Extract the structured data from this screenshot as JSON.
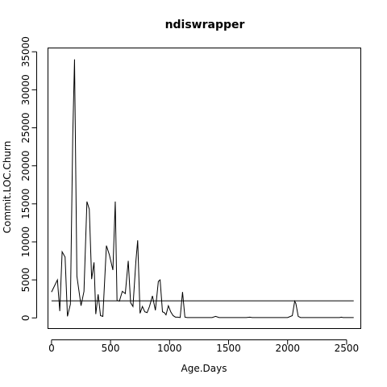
{
  "chart_data": {
    "type": "line",
    "title": "ndiswrapper",
    "xlabel": "Age.Days",
    "ylabel": "Commit.LOC.Churn",
    "xlim": [
      -30,
      2620
    ],
    "ylim": [
      -1400,
      35500
    ],
    "x_ticks": [
      0,
      500,
      1000,
      1500,
      2000,
      2500
    ],
    "y_ticks": [
      0,
      5000,
      10000,
      15000,
      20000,
      25000,
      30000,
      35000
    ],
    "reference_line": {
      "x": [
        0,
        2560
      ],
      "y": [
        2250,
        2250
      ]
    },
    "series": [
      {
        "x": [
          0,
          50,
          70,
          90,
          115,
          135,
          160,
          180,
          195,
          215,
          250,
          275,
          300,
          320,
          340,
          360,
          375,
          395,
          415,
          435,
          465,
          490,
          520,
          540,
          555,
          575,
          600,
          625,
          650,
          670,
          690,
          715,
          730,
          750,
          770,
          790,
          810,
          830,
          855,
          880,
          905,
          920,
          940,
          955,
          970,
          990,
          1010,
          1030,
          1050,
          1070,
          1090,
          1110,
          1130,
          1150,
          1170,
          1190,
          1210,
          1300,
          1360,
          1390,
          1420,
          1500,
          1600,
          1650,
          1680,
          1700,
          2000,
          2040,
          2060,
          2070,
          2090,
          2110,
          2130,
          2440,
          2455,
          2470,
          2560
        ],
        "y": [
          3400,
          5000,
          900,
          8700,
          8000,
          200,
          1800,
          24000,
          34000,
          5500,
          1600,
          3500,
          15300,
          14300,
          5100,
          7300,
          500,
          3100,
          300,
          200,
          9500,
          8300,
          6300,
          15300,
          2300,
          2200,
          3500,
          3200,
          7500,
          2000,
          1500,
          7500,
          10200,
          600,
          1500,
          800,
          700,
          1500,
          2900,
          1000,
          4800,
          5000,
          800,
          700,
          400,
          1600,
          800,
          300,
          100,
          100,
          50,
          3400,
          100,
          50,
          50,
          50,
          50,
          50,
          50,
          200,
          50,
          50,
          50,
          50,
          100,
          50,
          50,
          300,
          2200,
          1900,
          200,
          50,
          50,
          50,
          100,
          50,
          50
        ]
      }
    ]
  }
}
